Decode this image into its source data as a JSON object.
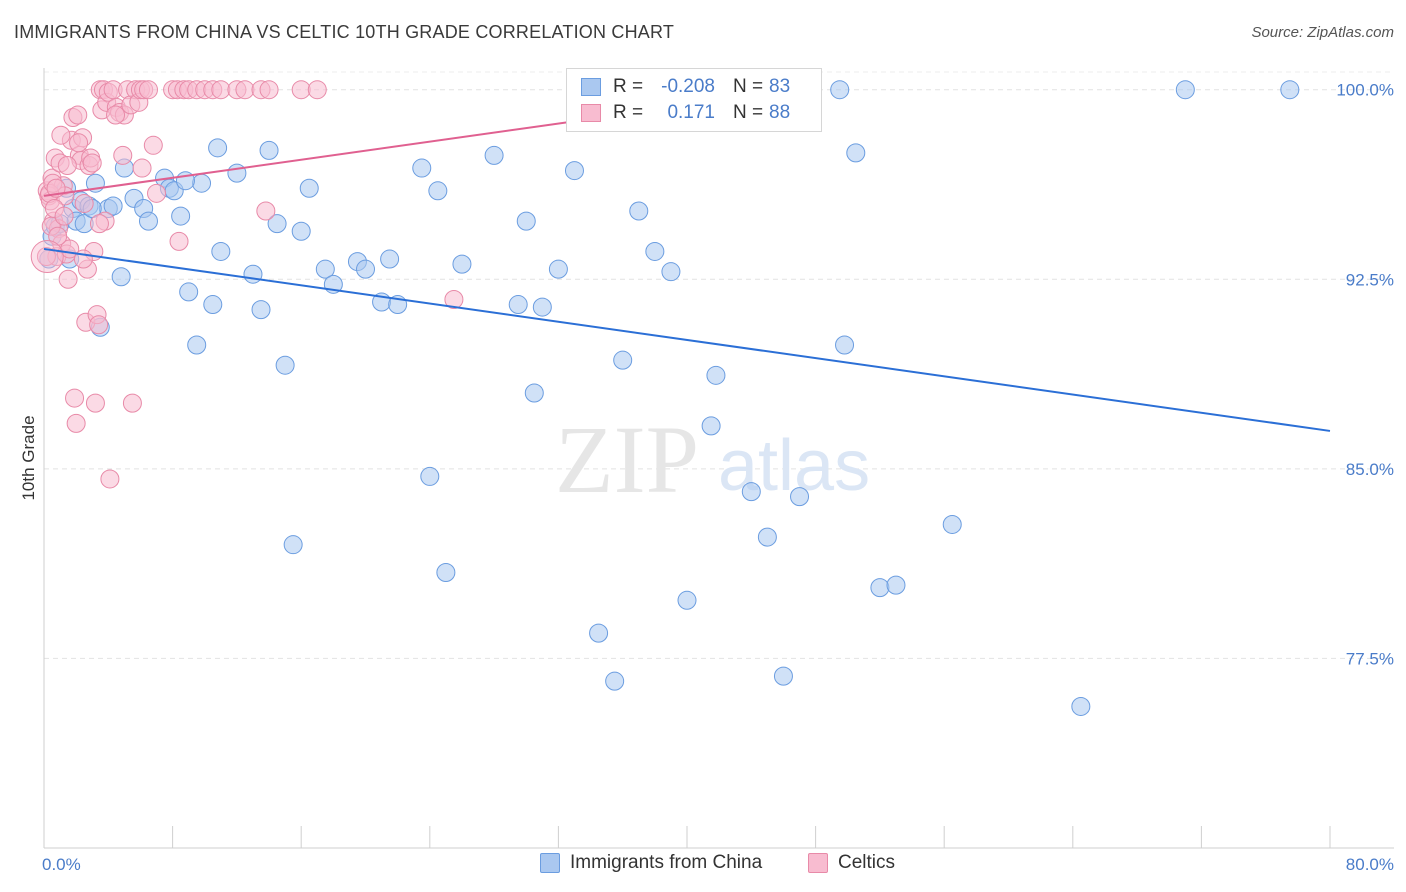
{
  "title": "IMMIGRANTS FROM CHINA VS CELTIC 10TH GRADE CORRELATION CHART",
  "source": "Source: ZipAtlas.com",
  "watermark": {
    "zip": "ZIP",
    "atlas": "atlas"
  },
  "legend": {
    "rows": [
      {
        "r_label": "R =",
        "r_value": "-0.208",
        "n_label": "N =",
        "n_value": "83",
        "color": "#aac8f0",
        "edge": "#6b9de0"
      },
      {
        "r_label": "R =",
        "r_value": "0.171",
        "n_label": "N =",
        "n_value": "88",
        "color": "#f8bcd0",
        "edge": "#e88aa8"
      }
    ]
  },
  "bottom_legend": {
    "items": [
      {
        "label": "Immigrants from China",
        "color": "#aac8f0",
        "edge": "#6b9de0"
      },
      {
        "label": "Celtics",
        "color": "#f8bcd0",
        "edge": "#e88aa8"
      }
    ]
  },
  "chart_data": {
    "type": "scatter",
    "title": "IMMIGRANTS FROM CHINA VS CELTIC 10TH GRADE CORRELATION CHART",
    "xlabel": "",
    "ylabel": "10th Grade",
    "xlim": [
      0,
      80
    ],
    "ylim": [
      70,
      100.7
    ],
    "x_tick_labels": [
      "0.0%",
      "80.0%"
    ],
    "y_ticks": [
      77.5,
      85.0,
      92.5,
      100.0
    ],
    "y_tick_labels": [
      "77.5%",
      "85.0%",
      "92.5%",
      "100.0%"
    ],
    "grid": "horizontal dashed",
    "legend_position": "top-center",
    "series": [
      {
        "name": "Immigrants from China",
        "color": "#aac8f0",
        "edge": "#6b9de0",
        "line_color": "#2b6fd6",
        "trend": {
          "x0": 0,
          "y0": 93.7,
          "x1": 80,
          "y1": 86.5
        },
        "points": [
          [
            0.3,
            93.3
          ],
          [
            0.5,
            94.2
          ],
          [
            0.7,
            94.6
          ],
          [
            1.0,
            94.7
          ],
          [
            1.4,
            96.1
          ],
          [
            1.6,
            93.3
          ],
          [
            1.8,
            95.3
          ],
          [
            2.0,
            94.8
          ],
          [
            2.3,
            95.6
          ],
          [
            2.8,
            95.4
          ],
          [
            3.2,
            96.3
          ],
          [
            3.5,
            90.6
          ],
          [
            4.0,
            95.3
          ],
          [
            4.3,
            95.4
          ],
          [
            5.0,
            96.9
          ],
          [
            5.6,
            95.7
          ],
          [
            6.2,
            95.3
          ],
          [
            7.5,
            96.5
          ],
          [
            7.8,
            96.1
          ],
          [
            8.1,
            96.0
          ],
          [
            8.5,
            95.0
          ],
          [
            9.0,
            92.0
          ],
          [
            9.5,
            89.9
          ],
          [
            10.5,
            91.5
          ],
          [
            11.0,
            93.6
          ],
          [
            12.0,
            96.7
          ],
          [
            13.0,
            92.7
          ],
          [
            13.5,
            91.3
          ],
          [
            14.5,
            94.7
          ],
          [
            15.0,
            89.1
          ],
          [
            16.0,
            94.4
          ],
          [
            16.5,
            96.1
          ],
          [
            17.5,
            92.9
          ],
          [
            18.0,
            92.3
          ],
          [
            19.5,
            93.2
          ],
          [
            20.0,
            92.9
          ],
          [
            21.0,
            91.6
          ],
          [
            21.5,
            93.3
          ],
          [
            22.0,
            91.5
          ],
          [
            23.5,
            96.9
          ],
          [
            24.0,
            84.7
          ],
          [
            24.5,
            96.0
          ],
          [
            25.0,
            80.9
          ],
          [
            26.0,
            93.1
          ],
          [
            28.0,
            97.4
          ],
          [
            29.5,
            91.5
          ],
          [
            30.0,
            94.8
          ],
          [
            30.5,
            88.0
          ],
          [
            31.0,
            91.4
          ],
          [
            32.0,
            92.9
          ],
          [
            33.0,
            96.8
          ],
          [
            34.5,
            78.5
          ],
          [
            35.5,
            76.6
          ],
          [
            36.0,
            89.3
          ],
          [
            37.0,
            95.2
          ],
          [
            38.0,
            93.6
          ],
          [
            39.0,
            92.8
          ],
          [
            40.0,
            79.8
          ],
          [
            41.5,
            86.7
          ],
          [
            41.8,
            88.7
          ],
          [
            42.5,
            100.0
          ],
          [
            44.0,
            84.1
          ],
          [
            45.0,
            82.3
          ],
          [
            46.0,
            76.8
          ],
          [
            47.0,
            83.9
          ],
          [
            49.5,
            100.0
          ],
          [
            49.8,
            89.9
          ],
          [
            50.5,
            97.5
          ],
          [
            52.0,
            80.3
          ],
          [
            53.0,
            80.4
          ],
          [
            56.5,
            82.8
          ],
          [
            64.5,
            75.6
          ],
          [
            71.0,
            100.0
          ],
          [
            77.5,
            100.0
          ],
          [
            2.5,
            94.7
          ],
          [
            3.0,
            95.3
          ],
          [
            6.5,
            94.8
          ],
          [
            9.8,
            96.3
          ],
          [
            14.0,
            97.6
          ],
          [
            8.8,
            96.4
          ],
          [
            4.8,
            92.6
          ],
          [
            15.5,
            82.0
          ],
          [
            10.8,
            97.7
          ]
        ]
      },
      {
        "name": "Celtics",
        "color": "#f8bcd0",
        "edge": "#e88aa8",
        "line_color": "#e06090",
        "trend": {
          "x0": 0,
          "y0": 95.8,
          "x1": 47,
          "y1": 100.0
        },
        "points": [
          [
            0.2,
            96.0
          ],
          [
            0.3,
            95.8
          ],
          [
            0.4,
            95.6
          ],
          [
            0.5,
            96.5
          ],
          [
            0.6,
            94.8
          ],
          [
            0.7,
            97.3
          ],
          [
            0.8,
            93.4
          ],
          [
            0.9,
            94.5
          ],
          [
            1.0,
            97.1
          ],
          [
            1.1,
            93.9
          ],
          [
            1.2,
            96.2
          ],
          [
            1.3,
            95.8
          ],
          [
            1.4,
            93.5
          ],
          [
            1.5,
            92.5
          ],
          [
            1.6,
            93.7
          ],
          [
            1.7,
            98.0
          ],
          [
            1.8,
            98.9
          ],
          [
            1.9,
            87.8
          ],
          [
            2.0,
            86.8
          ],
          [
            2.1,
            99.0
          ],
          [
            2.2,
            97.4
          ],
          [
            2.3,
            97.2
          ],
          [
            2.4,
            98.1
          ],
          [
            2.5,
            95.5
          ],
          [
            2.6,
            90.8
          ],
          [
            2.7,
            92.9
          ],
          [
            2.8,
            97.0
          ],
          [
            2.9,
            97.3
          ],
          [
            3.0,
            97.1
          ],
          [
            3.1,
            93.6
          ],
          [
            3.2,
            87.6
          ],
          [
            3.3,
            91.1
          ],
          [
            3.4,
            90.7
          ],
          [
            3.5,
            100.0
          ],
          [
            3.6,
            99.2
          ],
          [
            3.7,
            100.0
          ],
          [
            3.8,
            94.8
          ],
          [
            3.9,
            99.5
          ],
          [
            4.0,
            99.9
          ],
          [
            4.1,
            84.6
          ],
          [
            4.3,
            100.0
          ],
          [
            4.5,
            99.3
          ],
          [
            4.7,
            99.1
          ],
          [
            4.9,
            97.4
          ],
          [
            5.0,
            99.0
          ],
          [
            5.2,
            100.0
          ],
          [
            5.4,
            99.4
          ],
          [
            5.5,
            87.6
          ],
          [
            5.7,
            100.0
          ],
          [
            5.9,
            99.5
          ],
          [
            6.0,
            100.0
          ],
          [
            6.2,
            100.0
          ],
          [
            6.5,
            100.0
          ],
          [
            6.8,
            97.8
          ],
          [
            7.0,
            95.9
          ],
          [
            8.0,
            100.0
          ],
          [
            8.3,
            100.0
          ],
          [
            8.7,
            100.0
          ],
          [
            9.0,
            100.0
          ],
          [
            9.5,
            100.0
          ],
          [
            10.0,
            100.0
          ],
          [
            10.5,
            100.0
          ],
          [
            11.0,
            100.0
          ],
          [
            12.0,
            100.0
          ],
          [
            12.5,
            100.0
          ],
          [
            13.5,
            100.0
          ],
          [
            14.0,
            100.0
          ],
          [
            16.0,
            100.0
          ],
          [
            17.0,
            100.0
          ],
          [
            25.5,
            91.7
          ],
          [
            47.0,
            100.0
          ],
          [
            13.8,
            95.2
          ],
          [
            0.35,
            95.9
          ],
          [
            0.45,
            94.6
          ],
          [
            0.55,
            96.3
          ],
          [
            0.65,
            95.3
          ],
          [
            0.75,
            96.1
          ],
          [
            0.85,
            94.2
          ],
          [
            1.05,
            98.2
          ],
          [
            1.25,
            95.0
          ],
          [
            1.45,
            97.0
          ],
          [
            2.15,
            97.9
          ],
          [
            2.45,
            93.3
          ],
          [
            3.45,
            94.7
          ],
          [
            4.45,
            99.0
          ],
          [
            6.1,
            96.9
          ],
          [
            8.4,
            94.0
          ],
          [
            0.15,
            93.4
          ]
        ]
      }
    ]
  }
}
